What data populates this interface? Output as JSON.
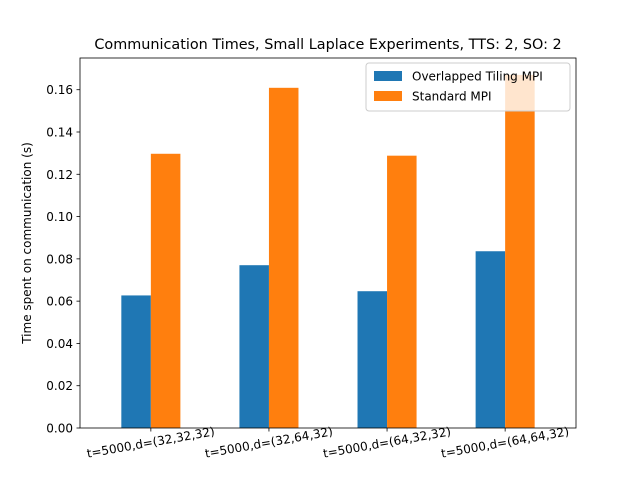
{
  "chart_data": {
    "type": "bar",
    "title": "Communication Times, Small Laplace Experiments, TTS: 2, SO: 2",
    "xlabel": "",
    "ylabel": "Time spent on communication (s)",
    "categories": [
      "t=5000,d=(32,32,32)",
      "t=5000,d=(32,64,32)",
      "t=5000,d=(64,32,32)",
      "t=5000,d=(64,64,32)"
    ],
    "series": [
      {
        "name": "Overlapped Tiling MPI",
        "color": "#1f77b4",
        "values": [
          0.0627,
          0.077,
          0.0647,
          0.0836
        ]
      },
      {
        "name": "Standard MPI",
        "color": "#ff7f0e",
        "values": [
          0.1297,
          0.1609,
          0.1288,
          0.167
        ]
      }
    ],
    "ylim": [
      0,
      0.175
    ],
    "yticks": [
      "0.00",
      "0.02",
      "0.04",
      "0.06",
      "0.08",
      "0.10",
      "0.12",
      "0.14",
      "0.16"
    ],
    "grid": false,
    "legend_position": "upper right"
  }
}
